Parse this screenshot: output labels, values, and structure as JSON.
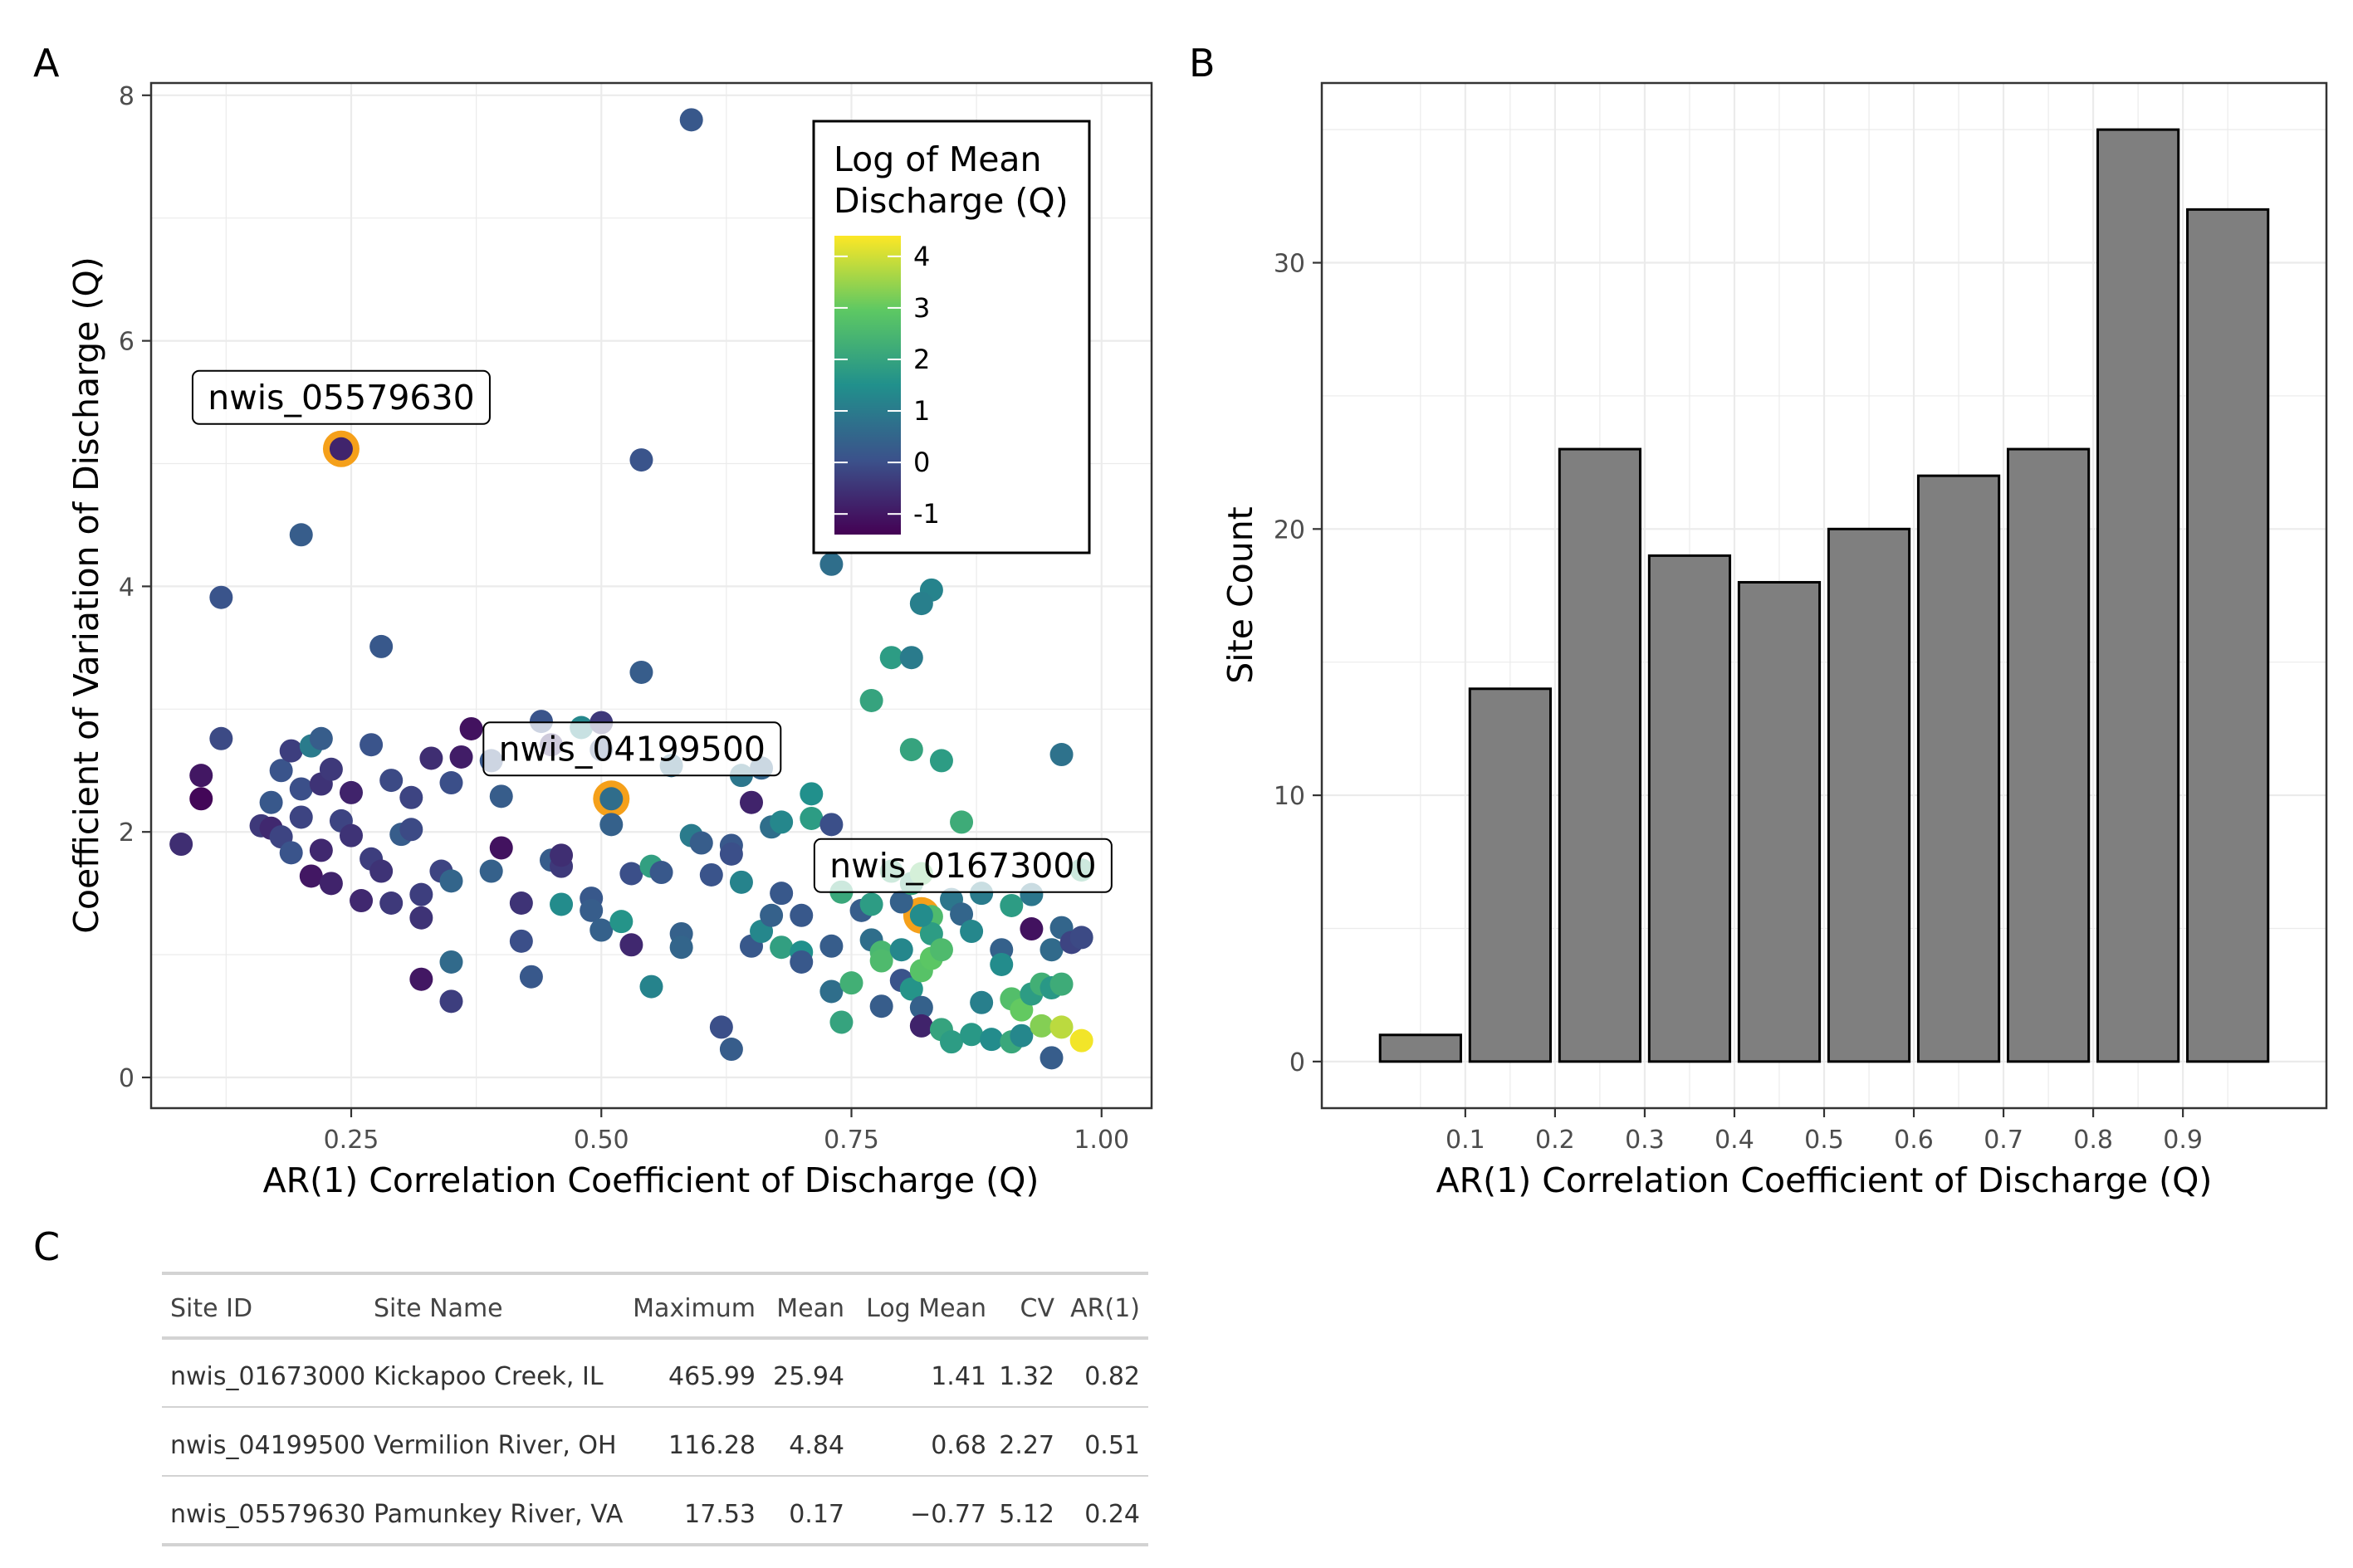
{
  "panels": {
    "a": "A",
    "b": "B",
    "c": "C"
  },
  "colors": {
    "grid": "#ebebeb",
    "axis": "#333333",
    "tick_text": "#4d4d4d",
    "highlight_ring": "#f5a01a",
    "bar_fill": "#7f7f7f",
    "bar_stroke": "#000000",
    "viridis": [
      "#440154",
      "#3b528b",
      "#21908c",
      "#5dc863",
      "#fde725"
    ]
  },
  "chart_data": [
    {
      "type": "scatter",
      "panel": "A",
      "xlabel": "AR(1) Correlation Coefficient of Discharge (Q)",
      "ylabel": "Coefficient of Variation of Discharge (Q)",
      "xlim": [
        0.05,
        1.05
      ],
      "ylim": [
        -0.25,
        8.1
      ],
      "x_ticks": [
        0.25,
        0.5,
        0.75,
        1.0
      ],
      "x_tick_labels": [
        "0.25",
        "0.50",
        "0.75",
        "1.00"
      ],
      "y_ticks": [
        0,
        2,
        4,
        6,
        8
      ],
      "y_tick_labels": [
        "0",
        "2",
        "4",
        "6",
        "8"
      ],
      "grid": true,
      "legend": {
        "title_lines": [
          "Log of Mean",
          "Discharge (Q)"
        ],
        "position": "top-right",
        "range": [
          -1.4,
          4.4
        ],
        "ticks": [
          4,
          3,
          2,
          1,
          0,
          -1
        ],
        "tick_labels": [
          "4",
          "3",
          "2",
          "1",
          "0",
          "-1"
        ]
      },
      "annotations": [
        {
          "label": "nwis_05579630",
          "x": 0.24,
          "y": 5.12
        },
        {
          "label": "nwis_04199500",
          "x": 0.51,
          "y": 2.27
        },
        {
          "label": "nwis_01673000",
          "x": 0.82,
          "y": 1.32
        }
      ],
      "points": [
        [
          0.59,
          7.8,
          0.2
        ],
        [
          0.54,
          5.03,
          0.1
        ],
        [
          0.2,
          4.42,
          0.3
        ],
        [
          0.12,
          3.91,
          0.1
        ],
        [
          0.28,
          3.51,
          0.2
        ],
        [
          0.54,
          3.3,
          0.3
        ],
        [
          0.73,
          4.18,
          0.7
        ],
        [
          0.83,
          3.97,
          1.2
        ],
        [
          0.82,
          3.86,
          1.1
        ],
        [
          0.79,
          3.42,
          1.8
        ],
        [
          0.81,
          3.42,
          1.0
        ],
        [
          0.77,
          3.07,
          2.0
        ],
        [
          0.81,
          2.67,
          2.0
        ],
        [
          0.84,
          2.58,
          1.8
        ],
        [
          0.96,
          2.63,
          0.8
        ],
        [
          0.12,
          2.76,
          -0.1
        ],
        [
          0.1,
          2.46,
          -1.0
        ],
        [
          0.1,
          2.27,
          -1.3
        ],
        [
          0.08,
          1.9,
          -0.6
        ],
        [
          0.16,
          2.05,
          -0.4
        ],
        [
          0.17,
          2.24,
          0.2
        ],
        [
          0.18,
          2.5,
          0.1
        ],
        [
          0.19,
          2.66,
          -0.3
        ],
        [
          0.21,
          2.7,
          1.0
        ],
        [
          0.22,
          2.76,
          0.3
        ],
        [
          0.2,
          2.35,
          0.0
        ],
        [
          0.22,
          2.39,
          -0.5
        ],
        [
          0.23,
          2.51,
          -0.4
        ],
        [
          0.24,
          2.09,
          -0.2
        ],
        [
          0.25,
          2.32,
          -0.8
        ],
        [
          0.27,
          2.71,
          0.1
        ],
        [
          0.29,
          2.42,
          -0.1
        ],
        [
          0.31,
          2.28,
          -0.2
        ],
        [
          0.33,
          2.6,
          -0.6
        ],
        [
          0.35,
          2.4,
          0.0
        ],
        [
          0.36,
          2.61,
          -0.9
        ],
        [
          0.37,
          2.84,
          -1.1
        ],
        [
          0.39,
          2.58,
          0.2
        ],
        [
          0.4,
          2.29,
          0.3
        ],
        [
          0.44,
          2.9,
          0.1
        ],
        [
          0.45,
          2.71,
          -0.6
        ],
        [
          0.48,
          2.85,
          1.3
        ],
        [
          0.5,
          2.89,
          -0.4
        ],
        [
          0.5,
          2.67,
          0.2
        ],
        [
          0.51,
          2.06,
          0.4
        ],
        [
          0.17,
          2.03,
          -0.7
        ],
        [
          0.18,
          1.96,
          -0.2
        ],
        [
          0.19,
          1.83,
          0.1
        ],
        [
          0.2,
          2.12,
          -0.2
        ],
        [
          0.21,
          1.64,
          -1.0
        ],
        [
          0.22,
          1.85,
          -0.7
        ],
        [
          0.23,
          1.58,
          -0.8
        ],
        [
          0.25,
          1.97,
          -0.5
        ],
        [
          0.26,
          1.44,
          -0.7
        ],
        [
          0.27,
          1.78,
          -0.3
        ],
        [
          0.28,
          1.68,
          -0.5
        ],
        [
          0.29,
          1.42,
          -0.4
        ],
        [
          0.3,
          1.98,
          0.3
        ],
        [
          0.31,
          2.02,
          -0.1
        ],
        [
          0.32,
          1.49,
          -0.3
        ],
        [
          0.32,
          1.3,
          -0.5
        ],
        [
          0.34,
          1.68,
          -0.2
        ],
        [
          0.35,
          1.6,
          0.5
        ],
        [
          0.35,
          0.94,
          0.6
        ],
        [
          0.35,
          0.62,
          -0.3
        ],
        [
          0.32,
          0.8,
          -1.0
        ],
        [
          0.39,
          1.68,
          0.4
        ],
        [
          0.4,
          1.87,
          -1.1
        ],
        [
          0.42,
          1.42,
          -0.5
        ],
        [
          0.42,
          1.11,
          0.0
        ],
        [
          0.43,
          0.82,
          0.2
        ],
        [
          0.45,
          1.77,
          0.3
        ],
        [
          0.46,
          1.72,
          -0.4
        ],
        [
          0.46,
          1.81,
          -0.6
        ],
        [
          0.46,
          1.41,
          1.4
        ],
        [
          0.49,
          1.46,
          0.2
        ],
        [
          0.49,
          1.36,
          0.3
        ],
        [
          0.5,
          1.2,
          0.4
        ],
        [
          0.52,
          1.27,
          1.6
        ],
        [
          0.53,
          1.08,
          -0.7
        ],
        [
          0.53,
          1.66,
          0.0
        ],
        [
          0.55,
          1.72,
          1.9
        ],
        [
          0.56,
          1.67,
          0.2
        ],
        [
          0.57,
          2.54,
          0.7
        ],
        [
          0.59,
          1.97,
          1.0
        ],
        [
          0.6,
          1.91,
          0.3
        ],
        [
          0.61,
          1.65,
          0.1
        ],
        [
          0.63,
          1.89,
          0.2
        ],
        [
          0.64,
          2.46,
          0.9
        ],
        [
          0.65,
          2.24,
          -0.8
        ],
        [
          0.66,
          2.52,
          0.5
        ],
        [
          0.67,
          2.04,
          0.7
        ],
        [
          0.68,
          2.08,
          1.3
        ],
        [
          0.71,
          2.31,
          1.5
        ],
        [
          0.71,
          2.11,
          1.8
        ],
        [
          0.73,
          2.06,
          0.0
        ],
        [
          0.55,
          0.74,
          1.2
        ],
        [
          0.58,
          1.17,
          0.4
        ],
        [
          0.58,
          1.06,
          0.5
        ],
        [
          0.62,
          0.41,
          0.0
        ],
        [
          0.63,
          0.23,
          0.3
        ],
        [
          0.63,
          1.82,
          0.0
        ],
        [
          0.64,
          1.59,
          1.2
        ],
        [
          0.65,
          1.07,
          0.2
        ],
        [
          0.66,
          1.19,
          1.3
        ],
        [
          0.67,
          1.32,
          0.4
        ],
        [
          0.68,
          1.5,
          0.2
        ],
        [
          0.68,
          1.06,
          1.9
        ],
        [
          0.7,
          1.32,
          0.2
        ],
        [
          0.7,
          1.02,
          1.5
        ],
        [
          0.7,
          0.94,
          0.2
        ],
        [
          0.73,
          1.07,
          0.3
        ],
        [
          0.73,
          0.7,
          0.7
        ],
        [
          0.74,
          0.45,
          2.0
        ],
        [
          0.74,
          1.51,
          2.1
        ],
        [
          0.75,
          0.77,
          2.3
        ],
        [
          0.76,
          1.36,
          0.3
        ],
        [
          0.77,
          1.41,
          1.8
        ],
        [
          0.77,
          1.12,
          0.7
        ],
        [
          0.78,
          1.02,
          2.5
        ],
        [
          0.78,
          0.95,
          2.6
        ],
        [
          0.78,
          0.58,
          0.3
        ],
        [
          0.79,
          1.68,
          2.2
        ],
        [
          0.8,
          1.43,
          0.4
        ],
        [
          0.8,
          1.04,
          1.3
        ],
        [
          0.8,
          0.79,
          0.1
        ],
        [
          0.81,
          0.72,
          1.6
        ],
        [
          0.81,
          1.58,
          2.0
        ],
        [
          0.82,
          1.66,
          2.8
        ],
        [
          0.82,
          0.87,
          2.8
        ],
        [
          0.82,
          0.57,
          0.4
        ],
        [
          0.82,
          0.42,
          -0.8
        ],
        [
          0.83,
          1.31,
          2.6
        ],
        [
          0.83,
          1.17,
          1.8
        ],
        [
          0.83,
          0.97,
          2.9
        ],
        [
          0.84,
          1.04,
          2.6
        ],
        [
          0.84,
          0.39,
          2.0
        ],
        [
          0.85,
          0.29,
          1.8
        ],
        [
          0.85,
          1.45,
          0.9
        ],
        [
          0.86,
          1.33,
          0.5
        ],
        [
          0.86,
          2.08,
          2.2
        ],
        [
          0.87,
          1.19,
          1.3
        ],
        [
          0.87,
          0.35,
          1.7
        ],
        [
          0.88,
          0.61,
          1.1
        ],
        [
          0.88,
          1.5,
          1.0
        ],
        [
          0.89,
          0.31,
          1.4
        ],
        [
          0.9,
          1.04,
          0.4
        ],
        [
          0.9,
          0.92,
          1.4
        ],
        [
          0.91,
          0.29,
          2.1
        ],
        [
          0.91,
          0.64,
          2.7
        ],
        [
          0.91,
          1.4,
          1.8
        ],
        [
          0.92,
          0.55,
          3.0
        ],
        [
          0.92,
          0.34,
          1.3
        ],
        [
          0.93,
          1.21,
          -1.1
        ],
        [
          0.93,
          0.68,
          1.8
        ],
        [
          0.93,
          1.49,
          0.9
        ],
        [
          0.94,
          0.76,
          2.3
        ],
        [
          0.94,
          0.42,
          3.3
        ],
        [
          0.95,
          0.16,
          0.3
        ],
        [
          0.95,
          1.04,
          0.6
        ],
        [
          0.95,
          0.73,
          1.7
        ],
        [
          0.96,
          1.22,
          0.5
        ],
        [
          0.96,
          0.76,
          2.2
        ],
        [
          0.96,
          0.41,
          3.8
        ],
        [
          0.97,
          1.1,
          -0.2
        ],
        [
          0.98,
          1.14,
          -0.1
        ],
        [
          0.98,
          1.69,
          2.1
        ],
        [
          0.98,
          0.3,
          4.3
        ],
        [
          0.24,
          5.12,
          -0.77
        ],
        [
          0.51,
          2.27,
          0.68
        ],
        [
          0.82,
          1.32,
          1.41
        ]
      ]
    },
    {
      "type": "bar",
      "panel": "B",
      "xlabel": "AR(1) Correlation Coefficient of Discharge (Q)",
      "ylabel": "Site Count",
      "bins": [
        [
          0.0,
          0.1
        ],
        [
          0.1,
          0.2
        ],
        [
          0.2,
          0.3
        ],
        [
          0.3,
          0.4
        ],
        [
          0.4,
          0.5
        ],
        [
          0.5,
          0.6
        ],
        [
          0.6,
          0.7
        ],
        [
          0.7,
          0.8
        ],
        [
          0.8,
          0.9
        ],
        [
          0.9,
          1.0
        ]
      ],
      "values": [
        1,
        14,
        23,
        19,
        18,
        20,
        22,
        23,
        35,
        32
      ],
      "xlim": [
        -0.06,
        1.06
      ],
      "ylim": [
        -1.75,
        36.75
      ],
      "x_ticks": [
        0.1,
        0.2,
        0.3,
        0.4,
        0.5,
        0.6,
        0.7,
        0.8,
        0.9
      ],
      "x_tick_labels": [
        "0.1",
        "0.2",
        "0.3",
        "0.4",
        "0.5",
        "0.6",
        "0.7",
        "0.8",
        "0.9"
      ],
      "y_ticks": [
        0,
        10,
        20,
        30
      ],
      "y_tick_labels": [
        "0",
        "10",
        "20",
        "30"
      ],
      "grid": true
    },
    {
      "type": "table",
      "panel": "C",
      "columns": [
        "Site ID",
        "Site Name",
        "Maximum",
        "Mean",
        "Log Mean",
        "CV",
        "AR(1)"
      ],
      "rows": [
        [
          "nwis_01673000",
          "Kickapoo Creek, IL",
          "465.99",
          "25.94",
          "1.41",
          "1.32",
          "0.82"
        ],
        [
          "nwis_04199500",
          "Vermilion River, OH",
          "116.28",
          "4.84",
          "0.68",
          "2.27",
          "0.51"
        ],
        [
          "nwis_05579630",
          "Pamunkey River, VA",
          "17.53",
          "0.17",
          "−0.77",
          "5.12",
          "0.24"
        ]
      ]
    }
  ]
}
